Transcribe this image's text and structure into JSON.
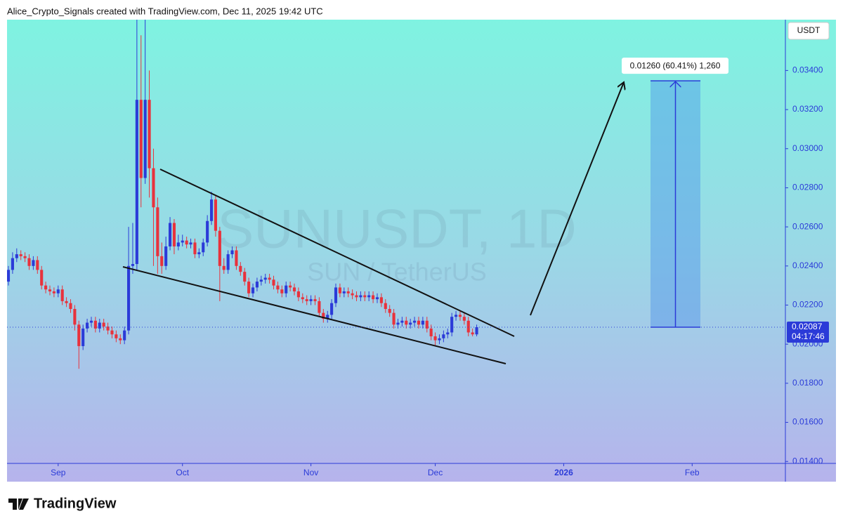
{
  "header": {
    "attribution": "Alice_Crypto_Signals created with TradingView.com, Dec 11, 2025 19:42 UTC"
  },
  "chart_data": {
    "type": "candlestick",
    "watermark_symbol": "SUNUSDT, 1D",
    "watermark_description": "SUN / TetherUS",
    "currency": "USDT",
    "colors": {
      "up": "#2b3bd8",
      "down": "#e8323c"
    },
    "open": [
      0.0232,
      0.0238,
      0.0244,
      0.0246,
      0.0245,
      0.0244,
      0.024,
      0.0243,
      0.0238,
      0.023,
      0.0228,
      0.0227,
      0.0226,
      0.0228,
      0.0222,
      0.0221,
      0.0218,
      0.021,
      0.0199,
      0.0208,
      0.0211,
      0.0212,
      0.0208,
      0.0211,
      0.0209,
      0.0207,
      0.0205,
      0.0203,
      0.0202,
      0.0207,
      0.024,
      0.0241,
      0.0325,
      0.0285,
      0.0325,
      0.029,
      0.027,
      0.0245,
      0.024,
      0.025,
      0.0262,
      0.025,
      0.0252,
      0.0253,
      0.0251,
      0.0252,
      0.0246,
      0.0247,
      0.0252,
      0.0263,
      0.0274,
      0.0258,
      0.024,
      0.0238,
      0.0246,
      0.0248,
      0.024,
      0.0237,
      0.0232,
      0.0226,
      0.0229,
      0.0232,
      0.0233,
      0.0234,
      0.0233,
      0.023,
      0.0228,
      0.0226,
      0.023,
      0.0229,
      0.0227,
      0.0224,
      0.0223,
      0.0222,
      0.0223,
      0.0222,
      0.0216,
      0.0213,
      0.0215,
      0.0221,
      0.0229,
      0.0226,
      0.0227,
      0.0226,
      0.0225,
      0.0224,
      0.0225,
      0.0224,
      0.0225,
      0.0223,
      0.0224,
      0.0221,
      0.0218,
      0.0216,
      0.021,
      0.0211,
      0.0212,
      0.021,
      0.0211,
      0.0212,
      0.021,
      0.0212,
      0.0208,
      0.0204,
      0.0202,
      0.0203,
      0.0205,
      0.0206,
      0.0214,
      0.0215,
      0.0214,
      0.0212,
      0.0206,
      0.0205
    ],
    "high": [
      0.024,
      0.0247,
      0.0249,
      0.0248,
      0.0247,
      0.0246,
      0.0245,
      0.0245,
      0.024,
      0.0232,
      0.023,
      0.0229,
      0.023,
      0.023,
      0.0224,
      0.0223,
      0.022,
      0.0212,
      0.021,
      0.0213,
      0.0214,
      0.0214,
      0.0213,
      0.0213,
      0.0211,
      0.0209,
      0.0207,
      0.0205,
      0.0209,
      0.026,
      0.0262,
      0.0366,
      0.0358,
      0.0366,
      0.034,
      0.03,
      0.0275,
      0.0252,
      0.0255,
      0.0265,
      0.0264,
      0.0256,
      0.0256,
      0.0255,
      0.0254,
      0.0254,
      0.0249,
      0.0254,
      0.0266,
      0.0278,
      0.0276,
      0.026,
      0.0244,
      0.0248,
      0.025,
      0.025,
      0.0242,
      0.0239,
      0.0234,
      0.0231,
      0.0234,
      0.0235,
      0.0236,
      0.0236,
      0.0235,
      0.0232,
      0.023,
      0.0232,
      0.0232,
      0.0231,
      0.0229,
      0.0226,
      0.0225,
      0.0225,
      0.0225,
      0.0224,
      0.0218,
      0.0217,
      0.0223,
      0.0231,
      0.0231,
      0.0229,
      0.0229,
      0.0228,
      0.0227,
      0.0227,
      0.0227,
      0.0227,
      0.0227,
      0.0226,
      0.0226,
      0.0223,
      0.022,
      0.0218,
      0.0213,
      0.0214,
      0.0214,
      0.0213,
      0.0214,
      0.0214,
      0.0214,
      0.0214,
      0.021,
      0.0206,
      0.0205,
      0.0207,
      0.0208,
      0.0216,
      0.0217,
      0.0217,
      0.0216,
      0.0214,
      0.0208,
      0.021
    ],
    "low": [
      0.023,
      0.0236,
      0.0242,
      0.0243,
      0.0242,
      0.0238,
      0.0238,
      0.0236,
      0.0228,
      0.0226,
      0.0225,
      0.0224,
      0.0224,
      0.022,
      0.0219,
      0.0216,
      0.0207,
      0.01874,
      0.0197,
      0.0206,
      0.0209,
      0.0206,
      0.0206,
      0.0207,
      0.0205,
      0.0203,
      0.0201,
      0.02,
      0.02,
      0.0205,
      0.0236,
      0.0238,
      0.027,
      0.0282,
      0.0275,
      0.024,
      0.0236,
      0.0236,
      0.0238,
      0.0248,
      0.0246,
      0.0248,
      0.025,
      0.0249,
      0.0249,
      0.0244,
      0.0244,
      0.0245,
      0.025,
      0.0261,
      0.0255,
      0.0222,
      0.0236,
      0.0236,
      0.0244,
      0.0238,
      0.0235,
      0.023,
      0.0224,
      0.0224,
      0.0227,
      0.023,
      0.0231,
      0.0231,
      0.0228,
      0.0226,
      0.0224,
      0.0224,
      0.0227,
      0.0225,
      0.0222,
      0.0221,
      0.022,
      0.022,
      0.022,
      0.0214,
      0.0211,
      0.0211,
      0.0213,
      0.0219,
      0.0224,
      0.0224,
      0.0224,
      0.0223,
      0.0222,
      0.0222,
      0.0222,
      0.0222,
      0.0221,
      0.0221,
      0.0219,
      0.0216,
      0.0214,
      0.0208,
      0.0208,
      0.0209,
      0.0208,
      0.0208,
      0.0209,
      0.0208,
      0.0208,
      0.0206,
      0.0202,
      0.0199,
      0.02,
      0.0201,
      0.0203,
      0.0204,
      0.0212,
      0.0212,
      0.021,
      0.0204,
      0.0204,
      0.0204
    ],
    "close": [
      0.0238,
      0.0244,
      0.0246,
      0.0245,
      0.0244,
      0.024,
      0.0243,
      0.0238,
      0.023,
      0.0228,
      0.0227,
      0.0226,
      0.0228,
      0.0222,
      0.0221,
      0.0218,
      0.021,
      0.0199,
      0.0208,
      0.0211,
      0.0212,
      0.0208,
      0.0211,
      0.0209,
      0.0207,
      0.0205,
      0.0203,
      0.0202,
      0.0207,
      0.024,
      0.0241,
      0.0325,
      0.0285,
      0.0325,
      0.029,
      0.027,
      0.0245,
      0.024,
      0.025,
      0.0262,
      0.025,
      0.0252,
      0.0253,
      0.0251,
      0.0252,
      0.0246,
      0.0247,
      0.0252,
      0.0263,
      0.0274,
      0.0258,
      0.024,
      0.0238,
      0.0246,
      0.0248,
      0.024,
      0.0237,
      0.0232,
      0.0226,
      0.0229,
      0.0232,
      0.0233,
      0.0234,
      0.0233,
      0.023,
      0.0228,
      0.0226,
      0.023,
      0.0229,
      0.0227,
      0.0224,
      0.0223,
      0.0222,
      0.0223,
      0.0222,
      0.0216,
      0.0213,
      0.0215,
      0.0221,
      0.0229,
      0.0226,
      0.0227,
      0.0226,
      0.0225,
      0.0224,
      0.0225,
      0.0224,
      0.0225,
      0.0223,
      0.0224,
      0.0221,
      0.0218,
      0.0216,
      0.021,
      0.0211,
      0.0212,
      0.021,
      0.0211,
      0.0212,
      0.021,
      0.0212,
      0.0208,
      0.0204,
      0.0202,
      0.0203,
      0.0205,
      0.0206,
      0.0214,
      0.0215,
      0.0214,
      0.0212,
      0.0206,
      0.0205,
      0.02087
    ],
    "xlim": [
      -0.34,
      187.5
    ],
    "xticks": [
      {
        "value": 12,
        "label": "Sep"
      },
      {
        "value": 42,
        "label": "Oct"
      },
      {
        "value": 73,
        "label": "Nov"
      },
      {
        "value": 103,
        "label": "Dec"
      },
      {
        "value": 134,
        "label": "2026"
      },
      {
        "value": 165,
        "label": "Feb"
      }
    ],
    "ylim": [
      0.0139,
      0.0366
    ],
    "yticks": [
      {
        "value": 0.014,
        "label": "0.01400"
      },
      {
        "value": 0.016,
        "label": "0.01600"
      },
      {
        "value": 0.018,
        "label": "0.01800"
      },
      {
        "value": 0.02,
        "label": "0.02000"
      },
      {
        "value": 0.022,
        "label": "0.02200"
      },
      {
        "value": 0.024,
        "label": "0.02400"
      },
      {
        "value": 0.026,
        "label": "0.02600"
      },
      {
        "value": 0.028,
        "label": "0.02800"
      },
      {
        "value": 0.03,
        "label": "0.03000"
      },
      {
        "value": 0.032,
        "label": "0.03200"
      },
      {
        "value": 0.034,
        "label": "0.03400"
      }
    ],
    "last_price": 0.02087,
    "countdown": "04:17:46",
    "projection": {
      "from": 0.02087,
      "to": 0.03347,
      "label": "0.01260 (60.41%) 1,260"
    }
  },
  "footer": {
    "logo": "TradingView"
  }
}
